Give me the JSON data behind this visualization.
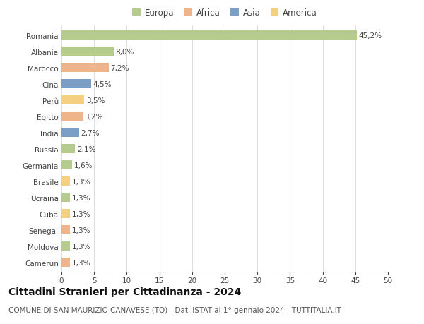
{
  "countries": [
    "Romania",
    "Albania",
    "Marocco",
    "Cina",
    "Perù",
    "Egitto",
    "India",
    "Russia",
    "Germania",
    "Brasile",
    "Ucraina",
    "Cuba",
    "Senegal",
    "Moldova",
    "Camerun"
  ],
  "values": [
    45.2,
    8.0,
    7.2,
    4.5,
    3.5,
    3.2,
    2.7,
    2.1,
    1.6,
    1.3,
    1.3,
    1.3,
    1.3,
    1.3,
    1.3
  ],
  "labels": [
    "45,2%",
    "8,0%",
    "7,2%",
    "4,5%",
    "3,5%",
    "3,2%",
    "2,7%",
    "2,1%",
    "1,6%",
    "1,3%",
    "1,3%",
    "1,3%",
    "1,3%",
    "1,3%",
    "1,3%"
  ],
  "colors": [
    "#b5cc8e",
    "#b5cc8e",
    "#f0b48a",
    "#7b9ec7",
    "#f5d080",
    "#f0b48a",
    "#7b9ec7",
    "#b5cc8e",
    "#b5cc8e",
    "#f5d080",
    "#b5cc8e",
    "#f5d080",
    "#f0b48a",
    "#b5cc8e",
    "#f0b48a"
  ],
  "legend_labels": [
    "Europa",
    "Africa",
    "Asia",
    "America"
  ],
  "legend_colors": [
    "#b5cc8e",
    "#f0b48a",
    "#7b9ec7",
    "#f5d080"
  ],
  "xlim": [
    0,
    50
  ],
  "xticks": [
    0,
    5,
    10,
    15,
    20,
    25,
    30,
    35,
    40,
    45,
    50
  ],
  "title": "Cittadini Stranieri per Cittadinanza - 2024",
  "subtitle": "COMUNE DI SAN MAURIZIO CANAVESE (TO) - Dati ISTAT al 1° gennaio 2024 - TUTTITALIA.IT",
  "bg_color": "#ffffff",
  "grid_color": "#dddddd",
  "bar_height": 0.55,
  "title_fontsize": 10,
  "subtitle_fontsize": 7.5,
  "label_fontsize": 7.5,
  "tick_fontsize": 7.5,
  "legend_fontsize": 8.5
}
